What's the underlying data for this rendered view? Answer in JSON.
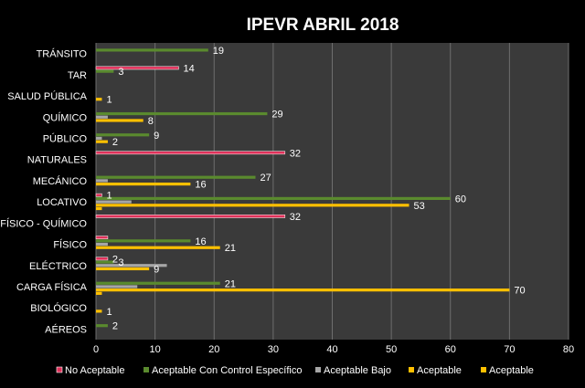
{
  "chart_data": {
    "type": "bar",
    "orientation": "horizontal",
    "title": "IPEVR ABRIL 2018",
    "xlabel": "",
    "ylabel": "",
    "xlim": [
      0,
      80
    ],
    "x_ticks": [
      0,
      10,
      20,
      30,
      40,
      50,
      60,
      70,
      80
    ],
    "grid": true,
    "legend_position": "bottom",
    "background": "#000000",
    "plot_background": "#3a3a3a",
    "categories": [
      "TRÁNSITO",
      "TAR",
      "SALUD PÚBLICA",
      "QUÍMICO",
      "PÚBLICO",
      "NATURALES",
      "MECÁNICO",
      "LOCATIVO",
      "FÍSICO - QUÍMICO",
      "FÍSICO",
      "ELÉCTRICO",
      "CARGA FÍSICA",
      "BIOLÓGICO",
      "AÉREOS"
    ],
    "series": [
      {
        "name": "No Aceptable",
        "color": "#e0315a",
        "values": [
          null,
          14,
          null,
          null,
          null,
          32,
          null,
          1,
          32,
          2,
          2,
          null,
          null,
          null
        ]
      },
      {
        "name": "Aceptable Con Control Específico",
        "color": "#5a8a2e",
        "values": [
          19,
          3,
          null,
          29,
          9,
          null,
          27,
          60,
          null,
          16,
          3,
          21,
          null,
          2
        ]
      },
      {
        "name": "Aceptable Bajo",
        "color": "#a6a6a6",
        "values": [
          null,
          null,
          null,
          2,
          1,
          null,
          2,
          6,
          null,
          2,
          12,
          7,
          null,
          null
        ]
      },
      {
        "name": "Aceptable",
        "color": "#ffc000",
        "values": [
          null,
          null,
          1,
          8,
          2,
          null,
          16,
          53,
          null,
          21,
          9,
          70,
          1,
          null
        ]
      },
      {
        "name": "Aceptable",
        "color": "#ffc000",
        "values": [
          null,
          null,
          null,
          null,
          null,
          null,
          null,
          1,
          null,
          null,
          null,
          1,
          null,
          null
        ]
      }
    ],
    "data_labels": [
      {
        "category": "TRÁNSITO",
        "series": 1,
        "text": "19"
      },
      {
        "category": "TAR",
        "series": 0,
        "text": "14"
      },
      {
        "category": "TAR",
        "series": 1,
        "text": "3"
      },
      {
        "category": "SALUD PÚBLICA",
        "series": 3,
        "text": "1"
      },
      {
        "category": "QUÍMICO",
        "series": 1,
        "text": "29"
      },
      {
        "category": "QUÍMICO",
        "series": 3,
        "text": "8"
      },
      {
        "category": "PÚBLICO",
        "series": 1,
        "text": "9"
      },
      {
        "category": "PÚBLICO",
        "series": 3,
        "text": "2"
      },
      {
        "category": "NATURALES",
        "series": 0,
        "text": "32"
      },
      {
        "category": "MECÁNICO",
        "series": 1,
        "text": "27"
      },
      {
        "category": "MECÁNICO",
        "series": 3,
        "text": "16"
      },
      {
        "category": "LOCATIVO",
        "series": 0,
        "text": "1"
      },
      {
        "category": "LOCATIVO",
        "series": 1,
        "text": "60"
      },
      {
        "category": "LOCATIVO",
        "series": 3,
        "text": "53"
      },
      {
        "category": "FÍSICO - QUÍMICO",
        "series": 0,
        "text": "32"
      },
      {
        "category": "FÍSICO",
        "series": 1,
        "text": "16"
      },
      {
        "category": "FÍSICO",
        "series": 3,
        "text": "21"
      },
      {
        "category": "ELÉCTRICO",
        "series": 0,
        "text": "2"
      },
      {
        "category": "ELÉCTRICO",
        "series": 1,
        "text": "3"
      },
      {
        "category": "ELÉCTRICO",
        "series": 3,
        "text": "9"
      },
      {
        "category": "CARGA FÍSICA",
        "series": 1,
        "text": "21"
      },
      {
        "category": "CARGA FÍSICA",
        "series": 3,
        "text": "70"
      },
      {
        "category": "BIOLÓGICO",
        "series": 3,
        "text": "1"
      },
      {
        "category": "AÉREOS",
        "series": 1,
        "text": "2"
      }
    ]
  }
}
